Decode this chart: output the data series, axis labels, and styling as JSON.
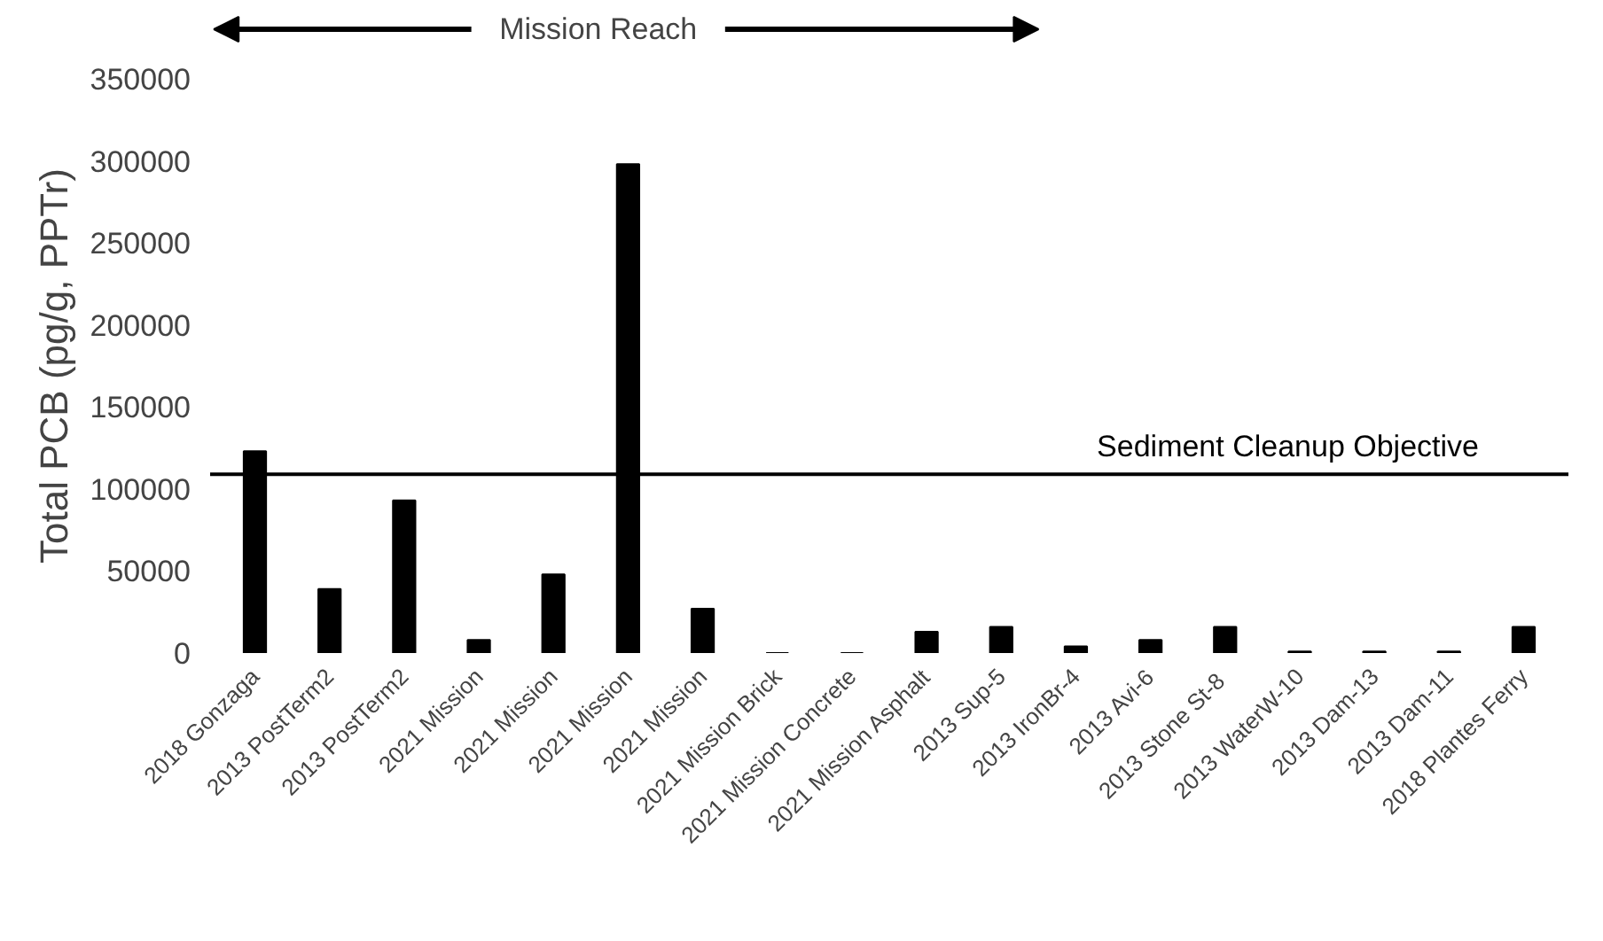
{
  "chart_data": {
    "type": "bar",
    "ylabel": "Total PCB (pg/g, PPTr)",
    "categories": [
      "2018 Gonzaga",
      "2013 PostTerm2",
      "2013 PostTerm2",
      "2021 Mission",
      "2021 Mission",
      "2021 Mission",
      "2021 Mission",
      "2021 Mission Brick",
      "2021 Mission Concrete",
      "2021 Mission Asphalt",
      "2013 Sup-5",
      "2013 IronBr-4",
      "2013 Avi-6",
      "2013 Stone  St-8",
      "2013 WaterW-10",
      "2013 Dam-13",
      "2013 Dam-11",
      "2018 Plantes Ferry"
    ],
    "values": [
      123000,
      39000,
      93000,
      8000,
      48000,
      298000,
      27000,
      0,
      0,
      13000,
      16000,
      4000,
      8000,
      16000,
      1000,
      1000,
      1000,
      16000
    ],
    "color": "#000000",
    "ylim": [
      0,
      350000
    ],
    "yticks": [
      0,
      50000,
      100000,
      150000,
      200000,
      250000,
      300000,
      350000
    ],
    "ref_lines": [
      {
        "axis": "y",
        "value": 109000,
        "label": "Sediment Cleanup Objective",
        "color": "#000000"
      }
    ],
    "annotations": [
      "Mission Reach"
    ],
    "grid": false
  }
}
